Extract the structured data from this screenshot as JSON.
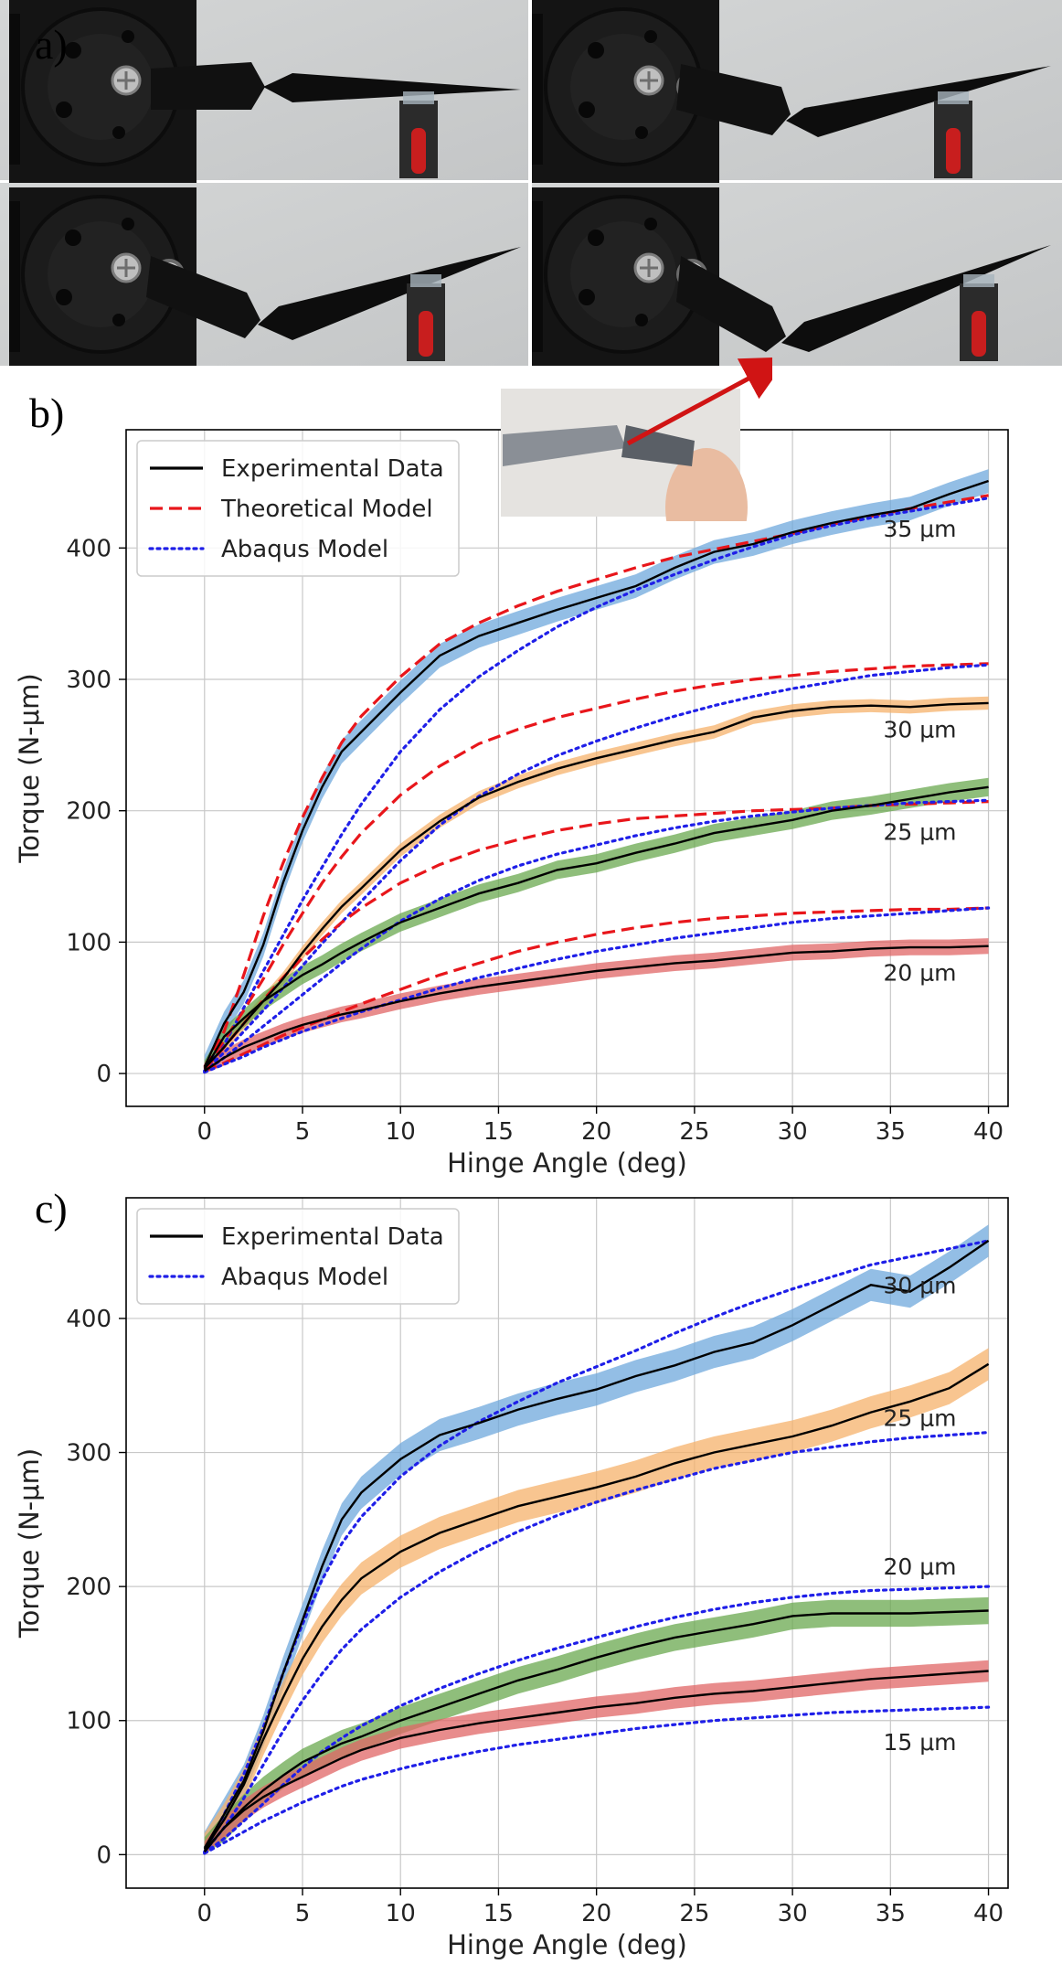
{
  "panel_labels": {
    "a": "a)",
    "b": "b)",
    "c": "c)"
  },
  "chart_data": [
    {
      "type": "line",
      "panel": "b",
      "xlabel": "Hinge Angle (deg)",
      "ylabel": "Torque (N-μm)",
      "xlim": [
        -4,
        41
      ],
      "ylim": [
        -25,
        490
      ],
      "xticks": [
        0,
        5,
        10,
        15,
        20,
        25,
        30,
        35,
        40
      ],
      "yticks": [
        0,
        100,
        200,
        300,
        400
      ],
      "grid": true,
      "legend": {
        "placement": "top-left",
        "entries": [
          {
            "label": "Experimental Data",
            "style": "solid",
            "color": "#000000"
          },
          {
            "label": "Theoretical Model",
            "style": "dashed",
            "color": "#e8161b"
          },
          {
            "label": "Abaqus Model",
            "style": "dotted",
            "color": "#1f1fe8"
          }
        ]
      },
      "thickness_labels": [
        {
          "text": "35 μm",
          "y": 415
        },
        {
          "text": "30 μm",
          "y": 262
        },
        {
          "text": "25 μm",
          "y": 184
        },
        {
          "text": "20 μm",
          "y": 77
        }
      ],
      "x": [
        0,
        1,
        2,
        3,
        4,
        5,
        6,
        7,
        8,
        10,
        12,
        14,
        16,
        18,
        20,
        22,
        24,
        26,
        28,
        30,
        32,
        34,
        36,
        38,
        40
      ],
      "series": [
        {
          "band_color": "#6fa8dc",
          "band": 9,
          "experimental": [
            5,
            38,
            62,
            98,
            145,
            185,
            218,
            245,
            260,
            290,
            318,
            333,
            343,
            353,
            362,
            371,
            385,
            397,
            403,
            412,
            419,
            425,
            430,
            441,
            451
          ],
          "theoretical": [
            5,
            32,
            75,
            120,
            160,
            195,
            225,
            252,
            272,
            302,
            327,
            343,
            356,
            367,
            376,
            385,
            393,
            399,
            405,
            411,
            418,
            424,
            430,
            435,
            440
          ],
          "abaqus": [
            2,
            22,
            50,
            78,
            105,
            132,
            157,
            182,
            205,
            245,
            277,
            302,
            322,
            340,
            355,
            368,
            380,
            391,
            401,
            410,
            417,
            423,
            428,
            433,
            438
          ]
        },
        {
          "band_color": "#f6b26b",
          "band": 5,
          "experimental": [
            4,
            20,
            38,
            55,
            72,
            92,
            110,
            127,
            141,
            170,
            192,
            210,
            222,
            232,
            240,
            247,
            254,
            260,
            271,
            276,
            279,
            280,
            279,
            281,
            282
          ],
          "theoretical": [
            4,
            25,
            48,
            72,
            98,
            122,
            145,
            165,
            183,
            212,
            234,
            251,
            262,
            271,
            278,
            285,
            291,
            296,
            300,
            303,
            306,
            308,
            310,
            311,
            312
          ],
          "abaqus": [
            2,
            16,
            32,
            48,
            65,
            82,
            99,
            115,
            131,
            162,
            189,
            211,
            228,
            242,
            253,
            263,
            272,
            280,
            287,
            293,
            298,
            303,
            306,
            309,
            311
          ]
        },
        {
          "band_color": "#6aa84f",
          "band": 7,
          "experimental": [
            3,
            28,
            42,
            55,
            65,
            75,
            83,
            92,
            100,
            115,
            126,
            137,
            145,
            155,
            160,
            168,
            175,
            183,
            188,
            193,
            200,
            204,
            209,
            214,
            218
          ],
          "theoretical": [
            3,
            20,
            38,
            56,
            73,
            88,
            102,
            115,
            126,
            145,
            159,
            170,
            178,
            185,
            190,
            194,
            196,
            198,
            200,
            201,
            202,
            204,
            205,
            206,
            207
          ],
          "abaqus": [
            1,
            12,
            24,
            36,
            48,
            60,
            72,
            84,
            95,
            116,
            133,
            147,
            158,
            167,
            174,
            181,
            187,
            192,
            196,
            199,
            202,
            204,
            206,
            207,
            208
          ]
        },
        {
          "band_color": "#e06666",
          "band": 6,
          "experimental": [
            2,
            12,
            20,
            26,
            32,
            37,
            41,
            45,
            48,
            55,
            61,
            66,
            70,
            74,
            78,
            81,
            84,
            86,
            89,
            92,
            93,
            95,
            96,
            96,
            97
          ],
          "theoretical": [
            2,
            8,
            15,
            22,
            29,
            35,
            41,
            47,
            53,
            64,
            75,
            84,
            93,
            100,
            106,
            111,
            115,
            118,
            120,
            122,
            123,
            124,
            125,
            125,
            126
          ],
          "abaqus": [
            1,
            7,
            13,
            20,
            26,
            32,
            37,
            42,
            47,
            56,
            65,
            73,
            80,
            87,
            93,
            98,
            103,
            107,
            111,
            115,
            118,
            120,
            122,
            124,
            126
          ]
        }
      ]
    },
    {
      "type": "line",
      "panel": "c",
      "xlabel": "Hinge Angle (deg)",
      "ylabel": "Torque (N-μm)",
      "xlim": [
        -4,
        41
      ],
      "ylim": [
        -25,
        490
      ],
      "xticks": [
        0,
        5,
        10,
        15,
        20,
        25,
        30,
        35,
        40
      ],
      "yticks": [
        0,
        100,
        200,
        300,
        400
      ],
      "grid": true,
      "legend": {
        "placement": "top-left",
        "entries": [
          {
            "label": "Experimental Data",
            "style": "solid",
            "color": "#000000"
          },
          {
            "label": "Abaqus Model",
            "style": "dotted",
            "color": "#1f1fe8"
          }
        ]
      },
      "thickness_labels": [
        {
          "text": "30 μm",
          "y": 425
        },
        {
          "text": "25 μm",
          "y": 326
        },
        {
          "text": "20 μm",
          "y": 215
        },
        {
          "text": "15 μm",
          "y": 84
        }
      ],
      "x": [
        0,
        1,
        2,
        3,
        4,
        5,
        6,
        7,
        8,
        10,
        12,
        14,
        16,
        18,
        20,
        22,
        24,
        26,
        28,
        30,
        32,
        34,
        36,
        38,
        40
      ],
      "series": [
        {
          "band_color": "#6fa8dc",
          "band": 12,
          "experimental": [
            5,
            30,
            55,
            92,
            135,
            175,
            215,
            250,
            270,
            295,
            313,
            322,
            332,
            340,
            347,
            357,
            365,
            375,
            382,
            395,
            410,
            425,
            420,
            438,
            458
          ],
          "abaqus": [
            2,
            30,
            60,
            95,
            135,
            172,
            205,
            232,
            252,
            282,
            305,
            323,
            338,
            352,
            364,
            376,
            389,
            401,
            412,
            422,
            431,
            440,
            446,
            452,
            458
          ]
        },
        {
          "band_color": "#f6b26b",
          "band": 12,
          "experimental": [
            4,
            26,
            52,
            86,
            117,
            146,
            170,
            190,
            206,
            226,
            240,
            250,
            260,
            267,
            274,
            282,
            292,
            300,
            306,
            312,
            320,
            330,
            338,
            348,
            366
          ],
          "abaqus": [
            2,
            20,
            42,
            67,
            92,
            115,
            135,
            153,
            168,
            192,
            211,
            227,
            241,
            253,
            263,
            272,
            280,
            288,
            294,
            300,
            304,
            308,
            311,
            313,
            315
          ]
        },
        {
          "band_color": "#6aa84f",
          "band": 10,
          "experimental": [
            3,
            20,
            35,
            48,
            59,
            69,
            76,
            83,
            88,
            100,
            110,
            120,
            130,
            138,
            147,
            155,
            162,
            167,
            172,
            178,
            180,
            180,
            180,
            181,
            182
          ],
          "abaqus": [
            1,
            12,
            25,
            38,
            52,
            65,
            77,
            87,
            96,
            111,
            124,
            135,
            145,
            154,
            162,
            170,
            177,
            183,
            188,
            192,
            195,
            197,
            198,
            199,
            200
          ]
        },
        {
          "band_color": "#e06666",
          "band": 8,
          "experimental": [
            2,
            20,
            33,
            43,
            51,
            58,
            65,
            72,
            78,
            87,
            93,
            98,
            102,
            106,
            110,
            113,
            117,
            120,
            122,
            125,
            128,
            131,
            133,
            135,
            137
          ],
          "abaqus": [
            1,
            9,
            17,
            25,
            32,
            39,
            45,
            51,
            56,
            64,
            71,
            77,
            82,
            86,
            90,
            94,
            97,
            100,
            102,
            104,
            106,
            107,
            108,
            109,
            110
          ]
        }
      ]
    }
  ]
}
